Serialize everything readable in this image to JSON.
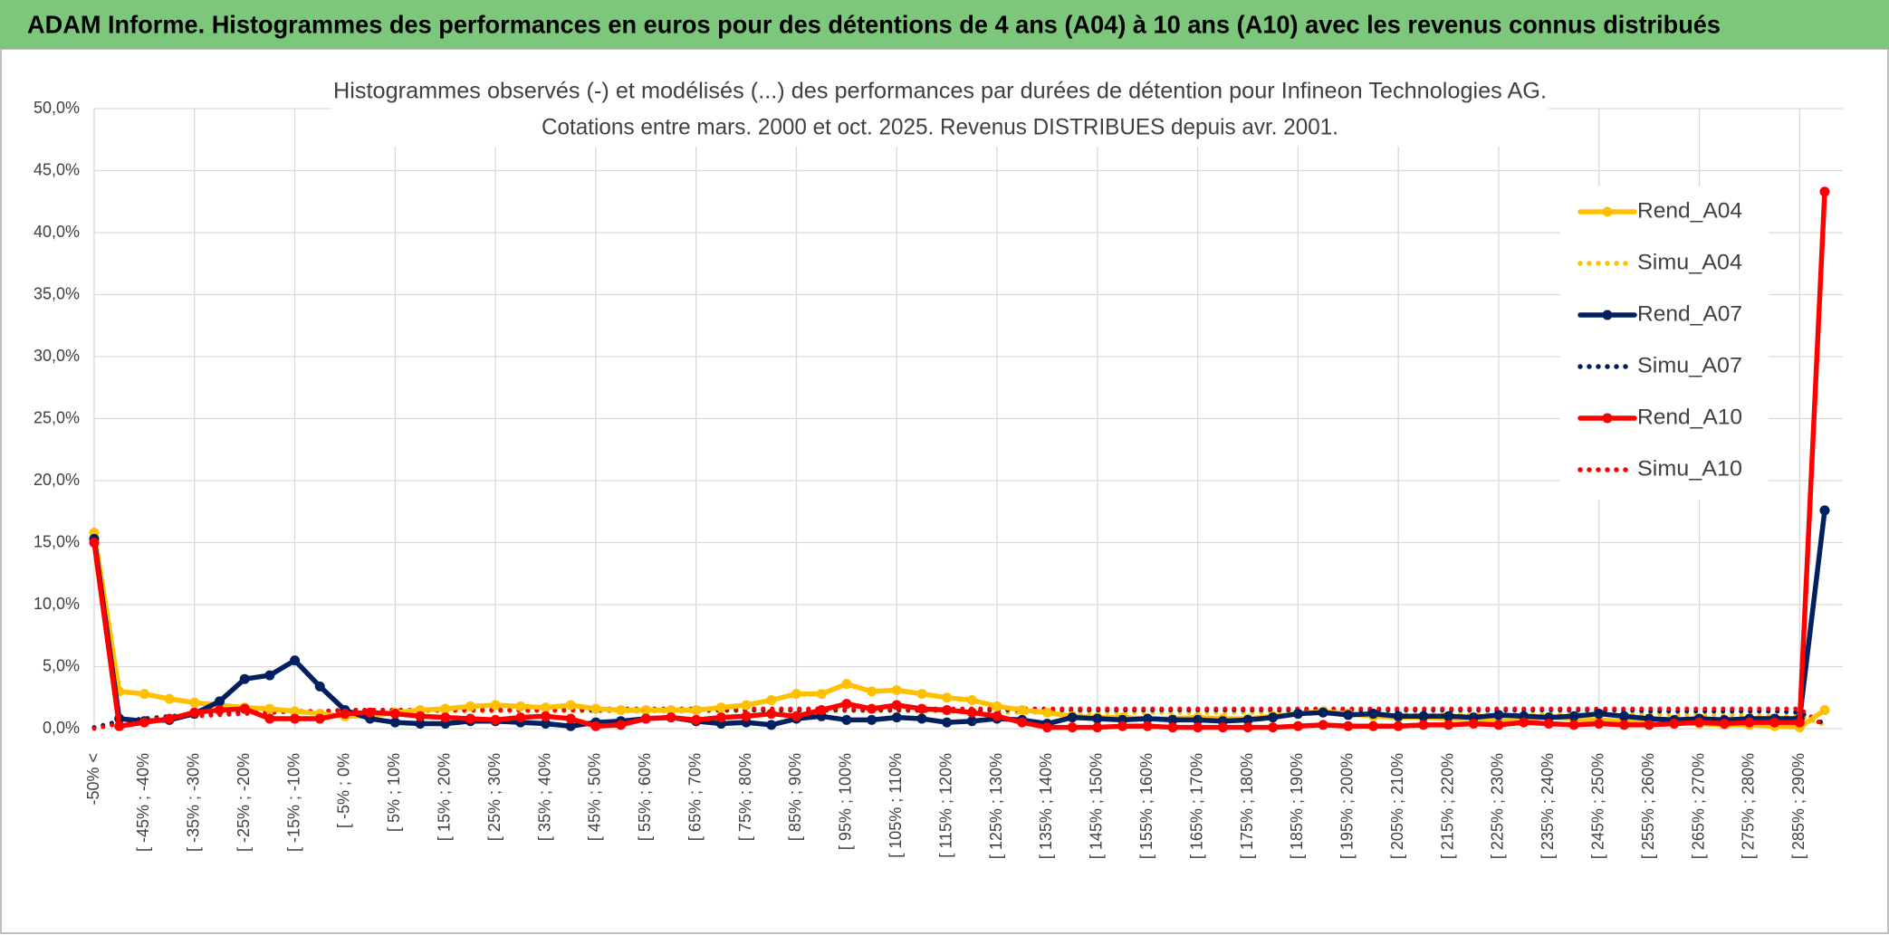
{
  "header": {
    "title": "ADAM Informe. Histogrammes des performances en euros pour des détentions de 4 ans (A04) à 10 ans (A10) avec les revenus connus distribués"
  },
  "chart_data": {
    "type": "line",
    "title": "Histogrammes observés (-) et modélisés (...) des performances par durées de détention pour Infineon Technologies AG.",
    "subtitle": "Cotations entre mars. 2000 et oct. 2025. Revenus DISTRIBUES depuis avr. 2001.",
    "categories": [
      "-50% <",
      null,
      "[ -45% ; -40%",
      null,
      "[ -35% ; -30%",
      null,
      "[ -25% ; -20%",
      null,
      "[ -15% ; -10%",
      null,
      "[ -5% ; 0%",
      null,
      "[ 5% ; 10%",
      null,
      "[ 15% ; 20%",
      null,
      "[ 25% ; 30%",
      null,
      "[ 35% ; 40%",
      null,
      "[ 45% ; 50%",
      null,
      "[ 55% ; 60%",
      null,
      "[ 65% ; 70%",
      null,
      "[ 75% ; 80%",
      null,
      "[ 85% ; 90%",
      null,
      "[ 95% ; 100%",
      null,
      "[ 105% ; 110%",
      null,
      "[ 115% ; 120%",
      null,
      "[ 125% ; 130%",
      null,
      "[ 135% ; 140%",
      null,
      "[ 145% ; 150%",
      null,
      "[ 155% ; 160%",
      null,
      "[ 165% ; 170%",
      null,
      "[ 175% ; 180%",
      null,
      "[ 185% ; 190%",
      null,
      "[ 195% ; 200%",
      null,
      "[ 205% ; 210%",
      null,
      "[ 215% ; 220%",
      null,
      "[ 225% ; 230%",
      null,
      "[ 235% ; 240%",
      null,
      "[ 245% ; 250%",
      null,
      "[ 255% ; 260%",
      null,
      "[ 265% ; 270%",
      null,
      "[ 275% ; 280%",
      null,
      "[ 285% ; 290%",
      null
    ],
    "ylim": [
      0,
      50
    ],
    "yticks": [
      {
        "value": 0,
        "label": "0,0%"
      },
      {
        "value": 5,
        "label": "5,0%"
      },
      {
        "value": 10,
        "label": "10,0%"
      },
      {
        "value": 15,
        "label": "15,0%"
      },
      {
        "value": 20,
        "label": "20,0%"
      },
      {
        "value": 25,
        "label": "25,0%"
      },
      {
        "value": 30,
        "label": "30,0%"
      },
      {
        "value": 35,
        "label": "35,0%"
      },
      {
        "value": 40,
        "label": "40,0%"
      },
      {
        "value": 45,
        "label": "45,0%"
      },
      {
        "value": 50,
        "label": "50,0%"
      }
    ],
    "grid": true,
    "legend": "right",
    "series": [
      {
        "name": "Rend_A04",
        "color": "#FFC000",
        "style": "solid",
        "values": [
          15.8,
          3.0,
          2.8,
          2.4,
          2.1,
          1.9,
          1.7,
          1.6,
          1.4,
          1.2,
          1.0,
          1.0,
          1.3,
          1.5,
          1.6,
          1.8,
          1.9,
          1.8,
          1.7,
          1.9,
          1.6,
          1.5,
          1.5,
          1.5,
          1.5,
          1.7,
          1.9,
          2.3,
          2.8,
          2.8,
          3.6,
          3.0,
          3.1,
          2.8,
          2.5,
          2.3,
          1.8,
          1.5,
          1.3,
          1.0,
          0.9,
          0.9,
          0.8,
          0.8,
          0.9,
          0.8,
          0.8,
          1.0,
          1.2,
          1.4,
          1.2,
          1.0,
          0.9,
          0.9,
          0.8,
          0.8,
          0.7,
          0.8,
          0.9,
          0.8,
          0.7,
          0.6,
          0.5,
          0.5,
          0.4,
          0.3,
          0.3,
          0.2,
          0.1,
          1.5
        ]
      },
      {
        "name": "Simu_A04",
        "color": "#FFC000",
        "style": "dotted",
        "values": [
          0.1,
          0.5,
          0.8,
          1.0,
          1.1,
          1.2,
          1.3,
          1.3,
          1.4,
          1.4,
          1.4,
          1.4,
          1.4,
          1.4,
          1.4,
          1.4,
          1.4,
          1.4,
          1.4,
          1.4,
          1.4,
          1.4,
          1.4,
          1.4,
          1.4,
          1.4,
          1.4,
          1.4,
          1.4,
          1.4,
          1.4,
          1.4,
          1.4,
          1.4,
          1.4,
          1.3,
          1.3,
          1.3,
          1.3,
          1.3,
          1.3,
          1.3,
          1.3,
          1.3,
          1.3,
          1.3,
          1.3,
          1.3,
          1.3,
          1.3,
          1.2,
          1.2,
          1.2,
          1.2,
          1.2,
          1.2,
          1.2,
          1.2,
          1.2,
          1.2,
          1.2,
          1.2,
          1.2,
          1.1,
          1.1,
          1.1,
          1.1,
          1.0,
          1.0,
          0.3
        ]
      },
      {
        "name": "Rend_A07",
        "color": "#002060",
        "style": "solid",
        "values": [
          15.3,
          0.8,
          0.6,
          0.7,
          1.2,
          2.2,
          4.0,
          4.3,
          5.5,
          3.4,
          1.5,
          0.8,
          0.5,
          0.4,
          0.4,
          0.6,
          0.6,
          0.5,
          0.4,
          0.2,
          0.5,
          0.6,
          0.8,
          0.9,
          0.6,
          0.4,
          0.5,
          0.3,
          0.8,
          1.0,
          0.7,
          0.7,
          0.9,
          0.8,
          0.5,
          0.6,
          0.8,
          0.7,
          0.4,
          0.9,
          0.8,
          0.7,
          0.8,
          0.7,
          0.7,
          0.6,
          0.7,
          0.9,
          1.2,
          1.3,
          1.1,
          1.2,
          1.0,
          1.0,
          1.0,
          0.9,
          1.1,
          1.0,
          0.9,
          1.0,
          1.2,
          1.0,
          0.8,
          0.7,
          0.8,
          0.7,
          0.8,
          0.8,
          0.8,
          17.6
        ]
      },
      {
        "name": "Simu_A07",
        "color": "#002060",
        "style": "dotted",
        "values": [
          0.1,
          0.6,
          0.8,
          1.0,
          1.1,
          1.2,
          1.3,
          1.3,
          1.4,
          1.4,
          1.5,
          1.5,
          1.5,
          1.5,
          1.5,
          1.5,
          1.5,
          1.5,
          1.5,
          1.5,
          1.5,
          1.5,
          1.5,
          1.5,
          1.5,
          1.5,
          1.5,
          1.5,
          1.5,
          1.5,
          1.5,
          1.5,
          1.5,
          1.5,
          1.5,
          1.5,
          1.5,
          1.5,
          1.5,
          1.5,
          1.5,
          1.5,
          1.5,
          1.5,
          1.5,
          1.5,
          1.5,
          1.5,
          1.5,
          1.5,
          1.5,
          1.5,
          1.5,
          1.5,
          1.5,
          1.5,
          1.5,
          1.5,
          1.5,
          1.5,
          1.5,
          1.5,
          1.4,
          1.4,
          1.4,
          1.4,
          1.4,
          1.4,
          1.3,
          0.4
        ]
      },
      {
        "name": "Rend_A10",
        "color": "#FF0000",
        "style": "solid",
        "values": [
          15.0,
          0.2,
          0.5,
          0.8,
          1.3,
          1.5,
          1.6,
          0.8,
          0.8,
          0.8,
          1.2,
          1.3,
          1.2,
          1.0,
          0.9,
          0.8,
          0.7,
          0.9,
          1.0,
          0.8,
          0.2,
          0.3,
          0.8,
          0.9,
          0.7,
          0.9,
          1.0,
          1.2,
          1.0,
          1.5,
          2.0,
          1.6,
          1.9,
          1.6,
          1.5,
          1.3,
          1.0,
          0.5,
          0.1,
          0.1,
          0.1,
          0.2,
          0.2,
          0.1,
          0.1,
          0.1,
          0.1,
          0.1,
          0.2,
          0.3,
          0.2,
          0.2,
          0.2,
          0.3,
          0.3,
          0.4,
          0.3,
          0.5,
          0.4,
          0.3,
          0.4,
          0.3,
          0.3,
          0.4,
          0.5,
          0.4,
          0.5,
          0.5,
          0.5,
          43.3
        ]
      },
      {
        "name": "Simu_A10",
        "color": "#FF0000",
        "style": "dotted",
        "values": [
          0.0,
          0.4,
          0.7,
          0.9,
          1.0,
          1.1,
          1.2,
          1.3,
          1.4,
          1.4,
          1.5,
          1.5,
          1.5,
          1.5,
          1.5,
          1.5,
          1.5,
          1.5,
          1.5,
          1.5,
          1.6,
          1.6,
          1.6,
          1.6,
          1.6,
          1.6,
          1.6,
          1.6,
          1.6,
          1.6,
          1.6,
          1.6,
          1.6,
          1.6,
          1.6,
          1.6,
          1.6,
          1.6,
          1.6,
          1.6,
          1.6,
          1.6,
          1.6,
          1.6,
          1.6,
          1.6,
          1.6,
          1.6,
          1.6,
          1.6,
          1.6,
          1.6,
          1.6,
          1.6,
          1.6,
          1.6,
          1.6,
          1.6,
          1.6,
          1.6,
          1.6,
          1.6,
          1.6,
          1.6,
          1.6,
          1.6,
          1.6,
          1.6,
          1.6,
          0.2
        ]
      }
    ]
  }
}
